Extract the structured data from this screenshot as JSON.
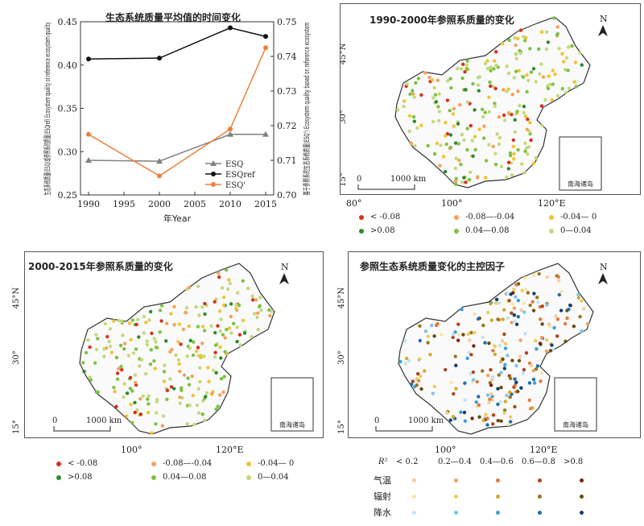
{
  "chart_data": [
    {
      "type": "line",
      "title": "生态系统质量平均值的时间变化",
      "xlabel": "年Year",
      "ylabel": "生态系统质量(ESQ)或参照系的质量(ESQref) Ecosystem quality or reference ecosystem quality",
      "y2label": "基于参照系的生态系统质量(ESQ') Ecosystem quality based on reference ecosystem",
      "x": [
        1990,
        2000,
        2010,
        2015
      ],
      "xlim": [
        1990,
        2015
      ],
      "xticks": [
        "1990",
        "1995",
        "2000",
        "2005",
        "2010",
        "2015"
      ],
      "ylim": [
        0.25,
        0.45
      ],
      "yticks": [
        "0.25",
        "0.30",
        "0.35",
        "0.40",
        "0.45"
      ],
      "y2lim": [
        0.7,
        0.75
      ],
      "y2ticks": [
        "0.70",
        "0.71",
        "0.72",
        "0.73",
        "0.74",
        "0.75"
      ],
      "series": [
        {
          "name": "ESQ",
          "axis": "left",
          "color": "#808080",
          "marker": "triangle",
          "values": [
            0.29,
            0.289,
            0.32,
            0.32
          ]
        },
        {
          "name": "ESQref",
          "axis": "left",
          "color": "#111111",
          "marker": "circle",
          "values": [
            0.407,
            0.408,
            0.443,
            0.433
          ]
        },
        {
          "name": "ESQ'",
          "axis": "right",
          "color": "#ef7f3a",
          "marker": "circle",
          "values": [
            0.7175,
            0.7055,
            0.719,
            0.7425
          ]
        }
      ],
      "legend": "bottom-right"
    }
  ],
  "maps": {
    "map1_title": "1990-2000年参照系质量的变化",
    "map2_title": "2000-2015年参照系质量的变化",
    "map3_title": "参照生态系统质量变化的主控因子",
    "north": "N",
    "lat45": "45°N",
    "lat30": "30°",
    "lat15": "15°",
    "lon80": "80°",
    "lon100": "100°",
    "lon120": "120°E",
    "scale_zero": "0",
    "scale_label": "1000 km",
    "inset_label": "南海诸岛"
  },
  "change_legend": {
    "items": [
      {
        "label": "< -0.08",
        "color": "#d7301f"
      },
      {
        "label": "-0.08—-0.04",
        "color": "#f4a259"
      },
      {
        "label": "-0.04— 0",
        "color": "#f1c232"
      },
      {
        "label": ">0.08",
        "color": "#2e8b2e"
      },
      {
        "label": "0.04—0.08",
        "color": "#7cc242"
      },
      {
        "label": "0—0.04",
        "color": "#c3d97a"
      }
    ]
  },
  "factor_legend": {
    "r2": "R²",
    "bins": [
      "< 0.2",
      "0.2—0.4",
      "0.4—0.6",
      "0.6—0.8",
      ">0.8"
    ],
    "rows": [
      {
        "label": "气温",
        "colors": [
          "#f7c9a0",
          "#f0a060",
          "#e07b39",
          "#b2431a",
          "#7a2410"
        ]
      },
      {
        "label": "辐射",
        "colors": [
          "#f5e6a3",
          "#e8cf5a",
          "#d4a82a",
          "#9c7416",
          "#6a4d0d"
        ]
      },
      {
        "label": "降水",
        "colors": [
          "#bfe3f5",
          "#7cc4ea",
          "#3d9fd8",
          "#1f6fae",
          "#143e6e"
        ]
      }
    ]
  }
}
